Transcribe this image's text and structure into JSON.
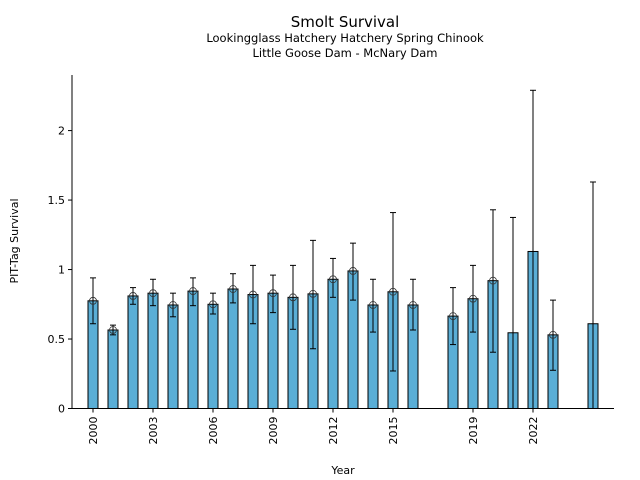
{
  "chart_data": {
    "type": "bar",
    "title": "Smolt Survival",
    "subtitle_lines": [
      "Lookingglass Hatchery Hatchery Spring Chinook",
      "Little Goose Dam - McNary Dam"
    ],
    "xlabel": "Year",
    "ylabel": "PIT-Tag Survival",
    "xlim": [
      1998.95,
      2026.05
    ],
    "ylim": [
      0,
      2.4
    ],
    "xticks": [
      2000,
      2003,
      2006,
      2009,
      2012,
      2015,
      2019,
      2022
    ],
    "yticks": [
      0,
      0.5,
      1,
      1.5,
      2
    ],
    "ytick_labels": [
      "0",
      "0.5",
      "1",
      "1.5",
      "2"
    ],
    "grid": false,
    "bar_color": "#5aaed6",
    "series": [
      {
        "name": "PIT-Tag Survival",
        "points": [
          {
            "year": 2000,
            "value": 0.775,
            "lower": 0.61,
            "upper": 0.94,
            "marker": true
          },
          {
            "year": 2001,
            "value": 0.565,
            "lower": 0.53,
            "upper": 0.6,
            "marker": true
          },
          {
            "year": 2002,
            "value": 0.81,
            "lower": 0.75,
            "upper": 0.87,
            "marker": true
          },
          {
            "year": 2003,
            "value": 0.83,
            "lower": 0.74,
            "upper": 0.93,
            "marker": true
          },
          {
            "year": 2004,
            "value": 0.745,
            "lower": 0.66,
            "upper": 0.83,
            "marker": true
          },
          {
            "year": 2005,
            "value": 0.845,
            "lower": 0.74,
            "upper": 0.94,
            "marker": true
          },
          {
            "year": 2006,
            "value": 0.75,
            "lower": 0.68,
            "upper": 0.83,
            "marker": true
          },
          {
            "year": 2007,
            "value": 0.86,
            "lower": 0.76,
            "upper": 0.97,
            "marker": true
          },
          {
            "year": 2008,
            "value": 0.82,
            "lower": 0.61,
            "upper": 1.03,
            "marker": true
          },
          {
            "year": 2009,
            "value": 0.83,
            "lower": 0.69,
            "upper": 0.96,
            "marker": true
          },
          {
            "year": 2010,
            "value": 0.8,
            "lower": 0.57,
            "upper": 1.03,
            "marker": true
          },
          {
            "year": 2011,
            "value": 0.825,
            "lower": 0.43,
            "upper": 1.21,
            "marker": true
          },
          {
            "year": 2012,
            "value": 0.93,
            "lower": 0.8,
            "upper": 1.08,
            "marker": true
          },
          {
            "year": 2013,
            "value": 0.99,
            "lower": 0.78,
            "upper": 1.19,
            "marker": true
          },
          {
            "year": 2014,
            "value": 0.745,
            "lower": 0.55,
            "upper": 0.93,
            "marker": true
          },
          {
            "year": 2015,
            "value": 0.84,
            "lower": 0.27,
            "upper": 1.41,
            "marker": true
          },
          {
            "year": 2016,
            "value": 0.745,
            "lower": 0.565,
            "upper": 0.93,
            "marker": true
          },
          {
            "year": 2018,
            "value": 0.665,
            "lower": 0.46,
            "upper": 0.87,
            "marker": true
          },
          {
            "year": 2019,
            "value": 0.79,
            "lower": 0.55,
            "upper": 1.03,
            "marker": true
          },
          {
            "year": 2020,
            "value": 0.92,
            "lower": 0.405,
            "upper": 1.43,
            "marker": true
          },
          {
            "year": 2021,
            "value": 0.545,
            "lower": 0,
            "upper": 1.375,
            "marker": false
          },
          {
            "year": 2022,
            "value": 1.13,
            "lower": 0,
            "upper": 2.29,
            "marker": false
          },
          {
            "year": 2023,
            "value": 0.53,
            "lower": 0.275,
            "upper": 0.78,
            "marker": true
          },
          {
            "year": 2025,
            "value": 0.61,
            "lower": 0,
            "upper": 1.63,
            "marker": false
          }
        ]
      }
    ]
  }
}
